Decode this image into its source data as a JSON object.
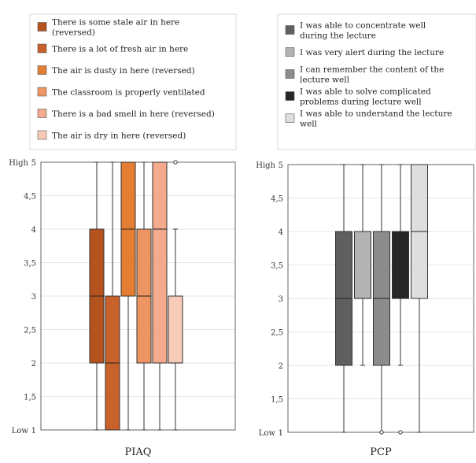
{
  "chart_data": [
    {
      "type": "boxplot",
      "xlabel": "PIAQ",
      "ylim": [
        1,
        5
      ],
      "yticks": [
        "1",
        "1,5",
        "2",
        "2,5",
        "3",
        "3,5",
        "4",
        "4,5",
        "5"
      ],
      "y_extreme_labels": {
        "low": "Low",
        "high": "High"
      },
      "grid": true,
      "legend_position": "top",
      "series": [
        {
          "name": "There is some stale air in here (reversed)",
          "color": "#b5531f",
          "min": 1,
          "q1": 2,
          "median": 3,
          "q3": 4,
          "max": 5
        },
        {
          "name": "There is a lot of fresh air in here",
          "color": "#c8612a",
          "min": 1,
          "q1": 1,
          "median": 2,
          "q3": 3,
          "max": 5
        },
        {
          "name": "The air is dusty in here (reversed)",
          "color": "#e57e32",
          "min": 1,
          "q1": 3,
          "median": 4,
          "q3": 5,
          "max": 5
        },
        {
          "name": "The classroom is properly ventilated",
          "color": "#ef9463",
          "min": 1,
          "q1": 2,
          "median": 3,
          "q3": 4,
          "max": 5
        },
        {
          "name": "There is a bad smell in here (reversed)",
          "color": "#f3aa8d",
          "min": 1,
          "q1": 2,
          "median": 4,
          "q3": 5,
          "max": 5
        },
        {
          "name": "The air is dry in here (reversed)",
          "color": "#f7cbb8",
          "min": 1,
          "q1": 2,
          "median": 2,
          "q3": 3,
          "max": 4,
          "outliers": [
            5
          ]
        }
      ]
    },
    {
      "type": "boxplot",
      "xlabel": "PCP",
      "ylim": [
        1,
        5
      ],
      "yticks": [
        "1",
        "1,5",
        "2",
        "2,5",
        "3",
        "3,5",
        "4",
        "4,5",
        "5"
      ],
      "y_extreme_labels": {
        "low": "Low",
        "high": "High"
      },
      "grid": true,
      "legend_position": "top",
      "series": [
        {
          "name": "I was able to concentrate well during the lecture",
          "color": "#5f5f5f",
          "min": 1,
          "q1": 2,
          "median": 3,
          "q3": 4,
          "max": 5
        },
        {
          "name": "I was very alert during the lecture",
          "color": "#b3b3b3",
          "min": 2,
          "q1": 3,
          "median": 3,
          "q3": 4,
          "max": 5
        },
        {
          "name": "I can remember the content of the lecture well",
          "color": "#8c8c8c",
          "min": 1,
          "q1": 2,
          "median": 3,
          "q3": 4,
          "max": 5,
          "outliers": [
            1
          ]
        },
        {
          "name": "I was able to solve complicated problems during lecture well",
          "color": "#262626",
          "min": 2,
          "q1": 3,
          "median": 3,
          "q3": 4,
          "max": 5,
          "outliers": [
            1
          ]
        },
        {
          "name": "I was able to understand the lecture well",
          "color": "#dedede",
          "min": 1,
          "q1": 3,
          "median": 4,
          "q3": 5,
          "max": 5
        }
      ]
    }
  ]
}
